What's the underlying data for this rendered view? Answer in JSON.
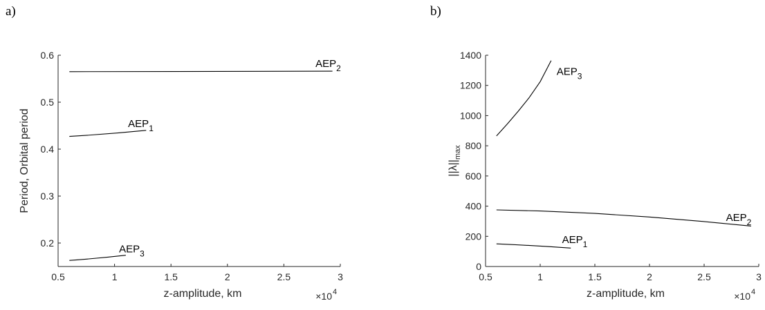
{
  "chart_data": [
    {
      "type": "line",
      "panel_label": "a)",
      "xlabel": "z-amplitude, km",
      "ylabel": "Period, Orbital period",
      "x_exponent": {
        "base": "×10",
        "power": "4"
      },
      "xlim": [
        0.5,
        3
      ],
      "ylim": [
        0.15,
        0.6
      ],
      "xticks": [
        0.5,
        1,
        1.5,
        2,
        2.5,
        3
      ],
      "xtick_labels": [
        "0.5",
        "1",
        "1.5",
        "2",
        "2.5",
        "3"
      ],
      "yticks": [
        0.2,
        0.3,
        0.4,
        0.5,
        0.6
      ],
      "ytick_labels": [
        "0.2",
        "0.3",
        "0.4",
        "0.5",
        "0.6"
      ],
      "grid": false,
      "series": [
        {
          "name": "AEP1",
          "label_base": "AEP",
          "label_sub": "1",
          "x": [
            0.6,
            1.28
          ],
          "y": [
            0.427,
            0.44
          ],
          "label_at": [
            1.12,
            0.447
          ]
        },
        {
          "name": "AEP2",
          "label_base": "AEP",
          "label_sub": "2",
          "x": [
            0.6,
            2.93
          ],
          "y": [
            0.565,
            0.566
          ],
          "label_at": [
            2.78,
            0.575
          ]
        },
        {
          "name": "AEP3",
          "label_base": "AEP",
          "label_sub": "3",
          "x": [
            0.6,
            1.1
          ],
          "y": [
            0.163,
            0.174
          ],
          "label_at": [
            1.04,
            0.18
          ]
        }
      ]
    },
    {
      "type": "line",
      "panel_label": "b)",
      "xlabel": "z-amplitude, km",
      "ylabel": "||λ||",
      "ylabel_sub": "max",
      "x_exponent": {
        "base": "×10",
        "power": "4"
      },
      "xlim": [
        0.5,
        3
      ],
      "ylim": [
        0,
        1400
      ],
      "xticks": [
        0.5,
        1,
        1.5,
        2,
        2.5,
        3
      ],
      "xtick_labels": [
        "0.5",
        "1",
        "1.5",
        "2",
        "2.5",
        "3"
      ],
      "yticks": [
        0,
        200,
        400,
        600,
        800,
        1000,
        1200,
        1400
      ],
      "ytick_labels": [
        "0",
        "200",
        "400",
        "600",
        "800",
        "1000",
        "1200",
        "1400"
      ],
      "grid": false,
      "series": [
        {
          "name": "AEP1",
          "label_base": "AEP",
          "label_sub": "1",
          "x": [
            0.6,
            1.28
          ],
          "y": [
            150,
            122
          ],
          "label_at": [
            1.2,
            155
          ]
        },
        {
          "name": "AEP2",
          "label_base": "AEP",
          "label_sub": "2",
          "x": [
            0.6,
            1.0,
            1.5,
            2.0,
            2.5,
            2.93
          ],
          "y": [
            375,
            368,
            352,
            328,
            298,
            268
          ],
          "label_at": [
            2.7,
            303
          ]
        },
        {
          "name": "AEP3",
          "label_base": "AEP",
          "label_sub": "3",
          "x": [
            0.6,
            0.7,
            0.8,
            0.9,
            1.0,
            1.1
          ],
          "y": [
            865,
            945,
            1030,
            1120,
            1225,
            1365
          ],
          "label_at": [
            1.15,
            1270
          ]
        }
      ]
    }
  ]
}
